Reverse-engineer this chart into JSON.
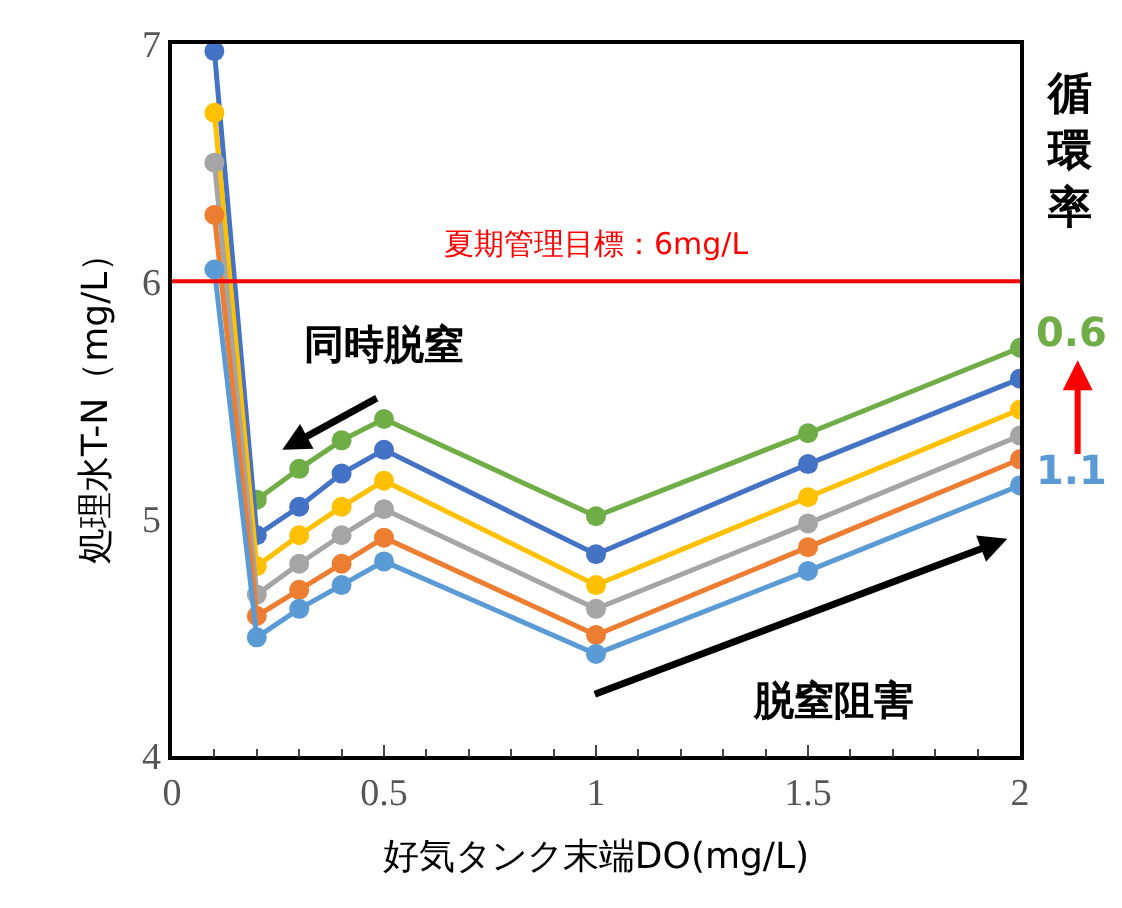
{
  "chart_data": {
    "type": "line",
    "xlabel": "好気タンク末端DO(mg/L)",
    "ylabel": "処理水T-N（mg/L）",
    "x": [
      0.1,
      0.2,
      0.3,
      0.4,
      0.5,
      1,
      1.5,
      2
    ],
    "series": [
      {
        "color": "#70ad47",
        "values": [
          null,
          5.08,
          5.21,
          5.33,
          5.42,
          5.01,
          5.36,
          5.72
        ]
      },
      {
        "color": "#4472c4",
        "values": [
          6.97,
          4.93,
          5.05,
          5.19,
          5.29,
          4.85,
          5.23,
          5.59
        ]
      },
      {
        "color": "#ffc000",
        "values": [
          6.71,
          4.8,
          4.93,
          5.05,
          5.16,
          4.72,
          5.09,
          5.46
        ]
      },
      {
        "color": "#a5a5a5",
        "values": [
          6.5,
          4.68,
          4.81,
          4.93,
          5.04,
          4.62,
          4.98,
          5.35
        ]
      },
      {
        "color": "#ed7d31",
        "values": [
          6.28,
          4.59,
          4.7,
          4.81,
          4.92,
          4.51,
          4.88,
          5.25
        ]
      },
      {
        "color": "#5b9bd5",
        "values": [
          6.05,
          4.5,
          4.62,
          4.72,
          4.82,
          4.43,
          4.78,
          5.14
        ]
      }
    ],
    "xlim": [
      0,
      2
    ],
    "xticks": [
      0,
      0.5,
      1,
      1.5,
      2
    ],
    "ylim": [
      4,
      7
    ],
    "yticks": [
      4,
      5,
      6,
      7
    ],
    "ref_lines": [
      {
        "axis": "y",
        "value": 6,
        "label": "夏期管理目標：6mg/L",
        "color": "#ff0000"
      }
    ],
    "annotations": [
      "同時脱窒",
      "脱窒阻害",
      "循環率",
      {
        "text": "0.6",
        "x": 2,
        "y": 5.72
      },
      {
        "text": "1.1",
        "x": 2,
        "y": 5.14
      }
    ],
    "marker": "circle",
    "line_style": "solid"
  }
}
